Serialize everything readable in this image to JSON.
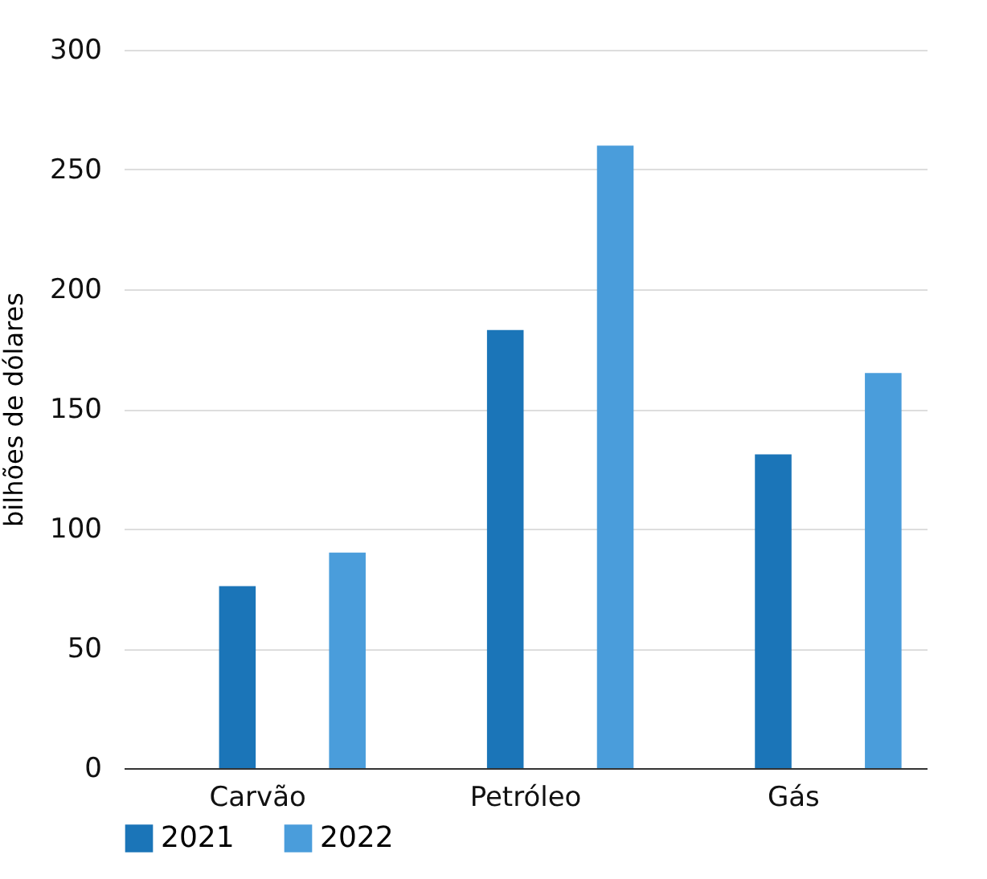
{
  "chart_data": {
    "type": "bar",
    "ylabel": "bilhões de dólares",
    "categories": [
      "Carvão",
      "Petróleo",
      "Gás"
    ],
    "series": [
      {
        "name": "2021",
        "color": "#1b75b8",
        "values": [
          76,
          183,
          131
        ]
      },
      {
        "name": "2022",
        "color": "#4a9ddb",
        "values": [
          90,
          260,
          165
        ]
      }
    ],
    "ylim": [
      0,
      300
    ],
    "yticks": [
      0,
      50,
      100,
      150,
      200,
      250,
      300
    ],
    "grid": "y",
    "legend": "bottom"
  }
}
